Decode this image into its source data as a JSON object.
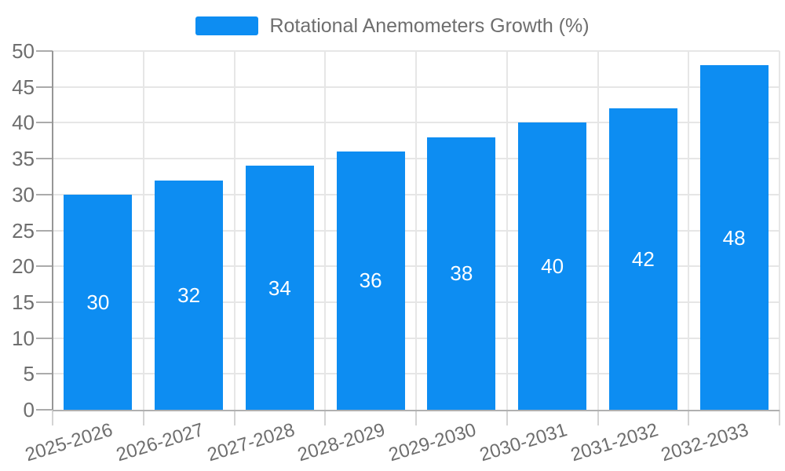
{
  "legend": {
    "label": "Rotational Anemometers Growth (%)"
  },
  "chart_data": {
    "type": "bar",
    "title": "Rotational Anemometers Growth (%)",
    "categories": [
      "2025-2026",
      "2026-2027",
      "2027-2028",
      "2028-2029",
      "2029-2030",
      "2030-2031",
      "2031-2032",
      "2032-2033"
    ],
    "values": [
      30,
      32,
      34,
      36,
      38,
      40,
      42,
      48
    ],
    "series": [
      {
        "name": "Rotational Anemometers Growth (%)",
        "values": [
          30,
          32,
          34,
          36,
          38,
          40,
          42,
          48
        ]
      }
    ],
    "data_labels": [
      30,
      32,
      34,
      36,
      38,
      40,
      42,
      48
    ],
    "xlabel": "",
    "ylabel": "",
    "ylim": [
      0,
      50
    ],
    "ytick_step": 5,
    "ytick_labels": [
      "0",
      "5",
      "10",
      "15",
      "20",
      "25",
      "30",
      "35",
      "40",
      "45",
      "50"
    ],
    "grid": true,
    "legend_position": "top-center",
    "colors": {
      "bar": "#0d8df2",
      "grid": "#e6e6e6",
      "axis_text": "#6e6e6e",
      "value_text": "#ffffff"
    }
  }
}
